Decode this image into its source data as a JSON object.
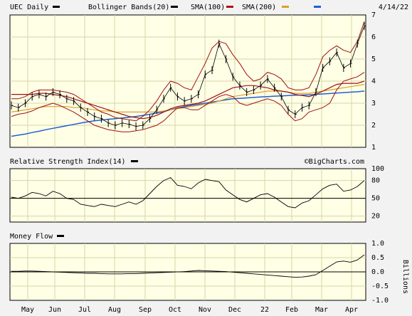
{
  "chart_data": [
    {
      "type": "line",
      "ticker_label": "UEC Daily",
      "date_label": "4/14/22",
      "watermark": "©BigCharts.com",
      "legend": [
        {
          "label": "Bollinger Bands(20)",
          "color": "#000000"
        },
        {
          "label": "SMA(100)",
          "color": "#b01010"
        },
        {
          "label": "SMA(200)",
          "color": "#d9a02a"
        },
        {
          "label": "",
          "color": "#1f5fd6"
        }
      ],
      "colors": {
        "price": "#000000",
        "bollinger": "#a01010",
        "sma100": "#a01010",
        "sma200": "#d9a02a",
        "sma200_blue": "#1f5fd6"
      },
      "ylim": [
        1,
        7
      ],
      "yticks": [
        "1",
        "2",
        "3",
        "4",
        "5",
        "6",
        "7"
      ],
      "x_labels": [
        "May",
        "Jun",
        "Jul",
        "Aug",
        "Sep",
        "Oct",
        "Nov",
        "Dec",
        "22",
        "Feb",
        "Mar",
        "Apr"
      ],
      "price": [
        2.9,
        2.8,
        3.0,
        3.3,
        3.4,
        3.3,
        3.5,
        3.4,
        3.2,
        3.1,
        2.8,
        2.6,
        2.4,
        2.3,
        2.1,
        2.0,
        2.1,
        2.05,
        1.95,
        2.0,
        2.3,
        2.7,
        3.2,
        3.7,
        3.3,
        3.1,
        3.2,
        3.4,
        4.3,
        4.5,
        5.7,
        5.0,
        4.2,
        3.8,
        3.5,
        3.6,
        3.8,
        4.1,
        3.7,
        3.3,
        2.7,
        2.5,
        2.8,
        2.9,
        3.5,
        4.6,
        4.9,
        5.3,
        4.6,
        4.8,
        5.7,
        6.5
      ],
      "bb_upper": [
        3.2,
        3.2,
        3.3,
        3.5,
        3.6,
        3.6,
        3.6,
        3.55,
        3.5,
        3.4,
        3.2,
        3.0,
        2.8,
        2.6,
        2.5,
        2.35,
        2.3,
        2.25,
        2.2,
        2.4,
        2.7,
        3.1,
        3.6,
        4.0,
        3.9,
        3.7,
        3.6,
        4.2,
        4.8,
        5.5,
        5.8,
        5.7,
        5.2,
        4.8,
        4.3,
        4.0,
        4.1,
        4.4,
        4.3,
        4.1,
        3.7,
        3.6,
        3.6,
        3.7,
        4.3,
        5.1,
        5.4,
        5.6,
        5.4,
        5.3,
        5.8,
        6.7
      ],
      "bb_lower": [
        2.4,
        2.5,
        2.55,
        2.65,
        2.8,
        2.9,
        3.0,
        2.9,
        2.75,
        2.6,
        2.4,
        2.2,
        2.0,
        1.9,
        1.8,
        1.75,
        1.7,
        1.7,
        1.75,
        1.8,
        1.9,
        2.0,
        2.2,
        2.5,
        2.8,
        2.8,
        2.7,
        2.7,
        2.9,
        3.1,
        3.3,
        3.4,
        3.3,
        3.0,
        2.9,
        3.0,
        3.1,
        3.2,
        3.1,
        2.9,
        2.5,
        2.2,
        2.3,
        2.6,
        2.7,
        2.8,
        3.0,
        3.6,
        4.0,
        4.1,
        4.2,
        4.4
      ],
      "sma100": [
        3.4,
        3.4,
        3.4,
        3.4,
        3.45,
        3.45,
        3.4,
        3.35,
        3.3,
        3.2,
        3.1,
        3.0,
        2.9,
        2.8,
        2.7,
        2.6,
        2.5,
        2.4,
        2.35,
        2.3,
        2.35,
        2.45,
        2.6,
        2.75,
        2.85,
        2.9,
        2.95,
        3.0,
        3.1,
        3.25,
        3.4,
        3.55,
        3.7,
        3.75,
        3.8,
        3.8,
        3.75,
        3.7,
        3.6,
        3.55,
        3.5,
        3.4,
        3.35,
        3.3,
        3.4,
        3.55,
        3.7,
        3.85,
        3.9,
        3.9,
        3.9,
        4.0
      ],
      "sma200": [
        2.6,
        2.65,
        2.7,
        2.75,
        2.8,
        2.85,
        2.85,
        2.85,
        2.85,
        2.8,
        2.8,
        2.75,
        2.7,
        2.65,
        2.65,
        2.6,
        2.6,
        2.6,
        2.6,
        2.6,
        2.6,
        2.6,
        2.65,
        2.7,
        2.75,
        2.8,
        2.85,
        2.9,
        2.95,
        3.0,
        3.1,
        3.2,
        3.3,
        3.35,
        3.4,
        3.45,
        3.5,
        3.55,
        3.55,
        3.55,
        3.5,
        3.45,
        3.45,
        3.45,
        3.5,
        3.55,
        3.6,
        3.65,
        3.7,
        3.75,
        3.8,
        3.85
      ],
      "sma_blue": [
        1.5,
        1.55,
        1.6,
        1.67,
        1.73,
        1.8,
        1.86,
        1.92,
        1.98,
        2.04,
        2.1,
        2.15,
        2.2,
        2.24,
        2.27,
        2.3,
        2.33,
        2.36,
        2.4,
        2.45,
        2.5,
        2.55,
        2.62,
        2.7,
        2.78,
        2.85,
        2.9,
        2.95,
        3.0,
        3.05,
        3.1,
        3.15,
        3.2,
        3.22,
        3.24,
        3.26,
        3.28,
        3.3,
        3.32,
        3.33,
        3.35,
        3.36,
        3.37,
        3.38,
        3.4,
        3.42,
        3.44,
        3.46,
        3.48,
        3.5,
        3.52,
        3.55
      ]
    },
    {
      "type": "line",
      "title": "Relative Strength Index(14)",
      "ylim": [
        10,
        100
      ],
      "yticks": [
        "20",
        "50",
        "80",
        "100"
      ],
      "reference_line": 50,
      "values": [
        52,
        50,
        54,
        60,
        58,
        54,
        62,
        58,
        50,
        48,
        40,
        38,
        36,
        40,
        38,
        36,
        40,
        44,
        40,
        46,
        58,
        70,
        80,
        85,
        72,
        70,
        66,
        76,
        82,
        80,
        78,
        64,
        56,
        48,
        44,
        50,
        56,
        58,
        52,
        44,
        36,
        34,
        42,
        46,
        56,
        66,
        72,
        74,
        62,
        64,
        70,
        80
      ]
    },
    {
      "type": "line",
      "title": "Money Flow",
      "ylabel": "Billions",
      "ylim": [
        -1.0,
        1.0
      ],
      "yticks": [
        "1.0",
        "0.5",
        "0.0",
        "-0.5",
        "-1.0"
      ],
      "reference_line": 0,
      "values": [
        0.02,
        0.02,
        0.03,
        0.03,
        0.02,
        0.01,
        0.0,
        -0.01,
        -0.02,
        -0.03,
        -0.04,
        -0.05,
        -0.05,
        -0.06,
        -0.07,
        -0.07,
        -0.07,
        -0.06,
        -0.06,
        -0.05,
        -0.04,
        -0.03,
        -0.02,
        -0.01,
        0.0,
        0.01,
        0.03,
        0.05,
        0.04,
        0.03,
        0.02,
        0.01,
        -0.01,
        -0.03,
        -0.05,
        -0.07,
        -0.09,
        -0.11,
        -0.13,
        -0.15,
        -0.17,
        -0.19,
        -0.18,
        -0.15,
        -0.1,
        0.05,
        0.2,
        0.35,
        0.38,
        0.34,
        0.42,
        0.6
      ]
    }
  ]
}
